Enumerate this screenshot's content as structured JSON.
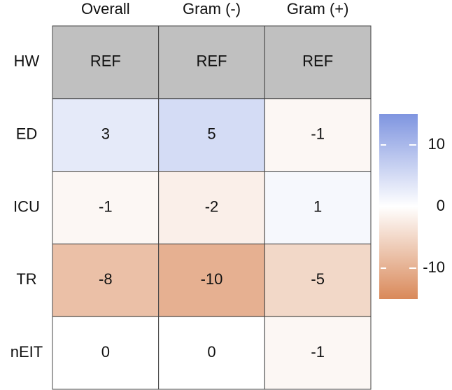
{
  "chart_data": {
    "type": "heatmap",
    "x_categories": [
      "Overall",
      "Gram (-)",
      "Gram (+)"
    ],
    "y_categories": [
      "HW",
      "ED",
      "ICU",
      "TR",
      "nEIT"
    ],
    "values": [
      [
        null,
        null,
        null
      ],
      [
        3,
        5,
        -1
      ],
      [
        -1,
        -2,
        1
      ],
      [
        -8,
        -10,
        -5
      ],
      [
        0,
        0,
        -1
      ]
    ],
    "value_labels": [
      [
        "REF",
        "REF",
        "REF"
      ],
      [
        null,
        null,
        null
      ],
      [
        null,
        null,
        null
      ],
      [
        null,
        null,
        null
      ],
      [
        null,
        null,
        null
      ]
    ],
    "na_color": "#c0c0c0",
    "colormap": {
      "low": "#d9895a",
      "mid": "#ffffff",
      "high": "#7f95e0"
    },
    "clim": [
      -15,
      15
    ],
    "cticks": [
      -10,
      0,
      10
    ]
  }
}
